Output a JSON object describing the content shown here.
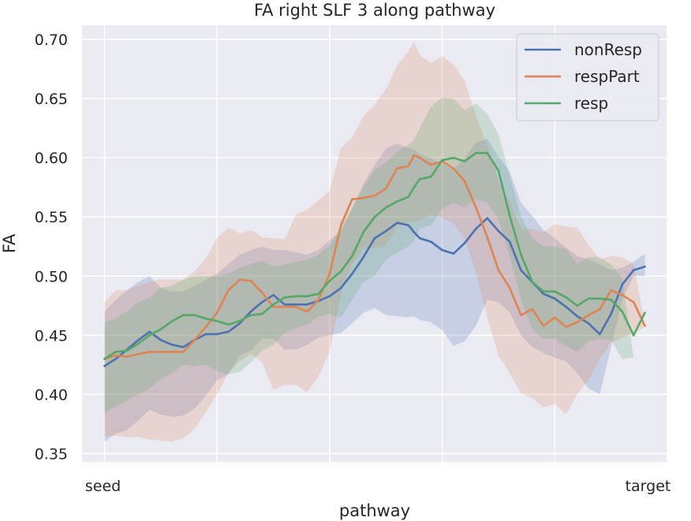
{
  "chart_data": {
    "type": "line",
    "title": "FA right SLF 3 along pathway",
    "xlabel": "pathway",
    "ylabel": "FA",
    "x_tick_labels": [
      "seed",
      "target"
    ],
    "yticks": [
      "0.35",
      "0.40",
      "0.45",
      "0.50",
      "0.55",
      "0.60",
      "0.65",
      "0.70"
    ],
    "ylim": [
      0.343,
      0.712
    ],
    "xlim": [
      -2,
      50
    ],
    "grid": true,
    "legend_position": "top-right",
    "background": "#eaeaf2",
    "x": [
      0,
      1,
      2,
      3,
      4,
      5,
      6,
      7,
      8,
      9,
      10,
      11,
      12,
      13,
      14,
      15,
      16,
      17,
      18,
      19,
      20,
      21,
      22,
      23,
      24,
      25,
      26,
      27,
      27.5,
      28,
      29,
      30,
      31,
      32,
      33,
      34,
      35,
      36,
      37,
      38,
      39,
      40,
      41,
      42,
      43,
      44,
      45,
      46,
      47,
      48
    ],
    "series": [
      {
        "name": "nonResp",
        "color": "#4c72b0",
        "values": [
          0.424,
          0.43,
          0.438,
          0.446,
          0.453,
          0.446,
          0.442,
          0.44,
          0.446,
          0.451,
          0.451,
          0.453,
          0.46,
          0.47,
          0.478,
          0.484,
          0.476,
          0.476,
          0.476,
          0.479,
          0.483,
          0.49,
          0.502,
          0.516,
          0.532,
          0.538,
          0.545,
          0.543,
          0.537,
          0.532,
          0.529,
          0.522,
          0.519,
          0.528,
          0.54,
          0.549,
          0.538,
          0.529,
          0.505,
          0.495,
          0.485,
          0.481,
          0.474,
          0.466,
          0.46,
          0.451,
          0.468,
          0.493,
          0.505,
          0.508
        ],
        "lower": [
          0.36,
          0.367,
          0.37,
          0.378,
          0.387,
          0.383,
          0.381,
          0.382,
          0.388,
          0.399,
          0.412,
          0.417,
          0.433,
          0.437,
          0.447,
          0.447,
          0.438,
          0.438,
          0.442,
          0.448,
          0.45,
          0.452,
          0.46,
          0.469,
          0.473,
          0.467,
          0.466,
          0.465,
          0.466,
          0.463,
          0.461,
          0.454,
          0.441,
          0.445,
          0.458,
          0.48,
          0.478,
          0.469,
          0.45,
          0.44,
          0.435,
          0.431,
          0.428,
          0.418,
          0.405,
          0.4,
          0.44,
          0.48,
          0.5,
          0.5
        ],
        "upper": [
          0.47,
          0.48,
          0.488,
          0.495,
          0.5,
          0.49,
          0.487,
          0.487,
          0.492,
          0.497,
          0.502,
          0.51,
          0.518,
          0.522,
          0.525,
          0.522,
          0.522,
          0.52,
          0.518,
          0.522,
          0.53,
          0.538,
          0.557,
          0.578,
          0.594,
          0.608,
          0.612,
          0.608,
          0.607,
          0.603,
          0.6,
          0.595,
          0.59,
          0.6,
          0.613,
          0.616,
          0.601,
          0.588,
          0.562,
          0.551,
          0.539,
          0.532,
          0.524,
          0.517,
          0.514,
          0.51,
          0.505,
          0.507,
          0.512,
          0.519
        ]
      },
      {
        "name": "respPart",
        "color": "#dd8452",
        "values": [
          0.43,
          0.433,
          0.432,
          0.434,
          0.436,
          0.436,
          0.436,
          0.436,
          0.446,
          0.457,
          0.469,
          0.488,
          0.497,
          0.496,
          0.486,
          0.474,
          0.474,
          0.474,
          0.47,
          0.48,
          0.502,
          0.543,
          0.565,
          0.566,
          0.568,
          0.574,
          0.591,
          0.593,
          0.602,
          0.6,
          0.594,
          0.597,
          0.591,
          0.58,
          0.558,
          0.533,
          0.505,
          0.49,
          0.467,
          0.472,
          0.458,
          0.465,
          0.457,
          0.461,
          0.467,
          0.472,
          0.488,
          0.484,
          0.478,
          0.458
        ],
        "lower": [
          0.365,
          0.365,
          0.364,
          0.364,
          0.362,
          0.361,
          0.36,
          0.363,
          0.371,
          0.385,
          0.4,
          0.418,
          0.428,
          0.434,
          0.427,
          0.404,
          0.408,
          0.408,
          0.402,
          0.415,
          0.436,
          0.485,
          0.51,
          0.523,
          0.524,
          0.526,
          0.542,
          0.546,
          0.546,
          0.547,
          0.552,
          0.549,
          0.545,
          0.531,
          0.503,
          0.465,
          0.433,
          0.418,
          0.401,
          0.397,
          0.389,
          0.392,
          0.383,
          0.4,
          0.412,
          0.43,
          0.444,
          0.448,
          0.452,
          0.457
        ],
        "upper": [
          0.478,
          0.488,
          0.488,
          0.492,
          0.495,
          0.497,
          0.497,
          0.497,
          0.504,
          0.515,
          0.532,
          0.541,
          0.536,
          0.539,
          0.533,
          0.532,
          0.531,
          0.552,
          0.556,
          0.564,
          0.572,
          0.608,
          0.617,
          0.635,
          0.645,
          0.658,
          0.678,
          0.69,
          0.698,
          0.687,
          0.68,
          0.686,
          0.679,
          0.665,
          0.636,
          0.61,
          0.58,
          0.563,
          0.54,
          0.54,
          0.537,
          0.544,
          0.542,
          0.541,
          0.526,
          0.514,
          0.517,
          0.516,
          0.51,
          0.46
        ]
      },
      {
        "name": "resp",
        "color": "#55a868",
        "values": [
          0.43,
          0.436,
          0.437,
          0.443,
          0.45,
          0.455,
          0.462,
          0.467,
          0.467,
          0.464,
          0.462,
          0.459,
          0.462,
          0.467,
          0.468,
          0.476,
          0.482,
          0.483,
          0.483,
          0.485,
          0.496,
          0.504,
          0.517,
          0.537,
          0.55,
          0.558,
          0.563,
          0.567,
          0.575,
          0.582,
          0.584,
          0.598,
          0.6,
          0.597,
          0.604,
          0.604,
          0.589,
          0.551,
          0.518,
          0.495,
          0.487,
          0.487,
          0.482,
          0.475,
          0.481,
          0.481,
          0.48,
          0.47,
          0.45,
          0.469
        ],
        "lower": [
          0.384,
          0.39,
          0.395,
          0.4,
          0.405,
          0.413,
          0.418,
          0.425,
          0.424,
          0.425,
          0.42,
          0.417,
          0.419,
          0.427,
          0.437,
          0.442,
          0.452,
          0.456,
          0.459,
          0.466,
          0.468,
          0.465,
          0.48,
          0.495,
          0.5,
          0.514,
          0.52,
          0.525,
          0.53,
          0.54,
          0.543,
          0.557,
          0.562,
          0.558,
          0.565,
          0.562,
          0.548,
          0.517,
          0.48,
          0.455,
          0.447,
          0.447,
          0.441,
          0.436,
          0.445,
          0.447,
          0.446,
          0.43,
          0.431,
          0.431
        ],
        "upper": [
          0.461,
          0.464,
          0.47,
          0.478,
          0.482,
          0.49,
          0.492,
          0.497,
          0.5,
          0.5,
          0.5,
          0.502,
          0.507,
          0.51,
          0.513,
          0.508,
          0.51,
          0.512,
          0.514,
          0.518,
          0.526,
          0.541,
          0.558,
          0.575,
          0.59,
          0.596,
          0.605,
          0.611,
          0.615,
          0.625,
          0.643,
          0.651,
          0.65,
          0.64,
          0.646,
          0.637,
          0.62,
          0.585,
          0.55,
          0.532,
          0.525,
          0.525,
          0.523,
          0.51,
          0.516,
          0.516,
          0.51,
          0.498,
          0.431,
          0.431
        ]
      }
    ]
  }
}
